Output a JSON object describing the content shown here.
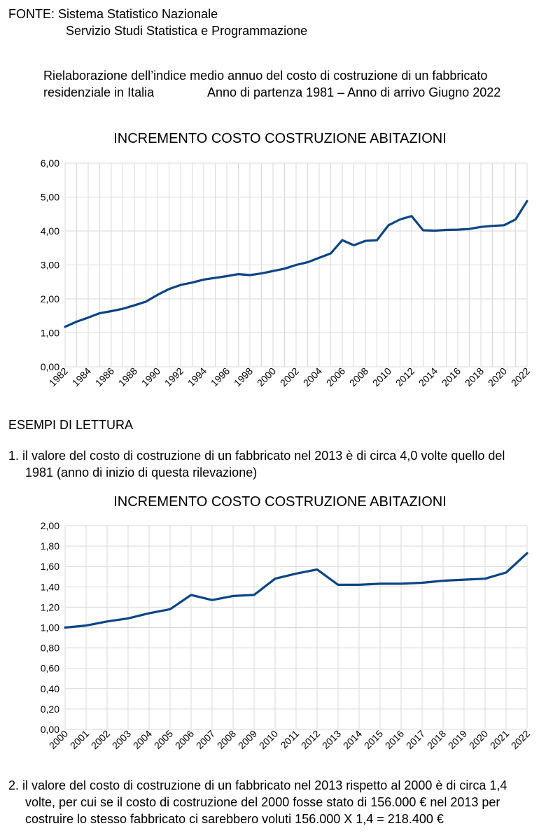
{
  "header": {
    "source_line1": "FONTE: Sistema Statistico Nazionale",
    "source_line2": "Servizio Studi Statistica e Programmazione",
    "desc_line1": "Rielaborazione dell’indice medio annuo del costo di costruzione di un fabbricato",
    "desc_line2a": "residenziale in Italia",
    "desc_line2b": "Anno di partenza 1981 – Anno di arrivo Giugno 2022"
  },
  "section_title": "ESEMPI DI LETTURA",
  "example1": {
    "line1": "1. il valore del costo di costruzione di un fabbricato nel 2013 è di circa 4,0 volte quello del",
    "line2": "1981 (anno di inizio di questa rilevazione)"
  },
  "example2": {
    "line1": "2. il valore del costo di costruzione di un fabbricato nel 2013 rispetto al 2000 è di circa 1,4",
    "line2": "volte, per cui se il costo di costruzione del 2000 fosse stato di 156.000 € nel 2013 per",
    "line3": "costruire lo stesso fabbricato ci sarebbero voluti 156.000 X 1,4 = 218.400 €"
  },
  "colors": {
    "series": "#0b4584",
    "grid": "#d9d9d9"
  },
  "chart_data": [
    {
      "type": "line",
      "title": "INCREMENTO COSTO COSTRUZIONE ABITAZIONI",
      "xlabel": "",
      "ylabel": "",
      "ylim": [
        0,
        6
      ],
      "yticks": [
        "0,00",
        "1,00",
        "2,00",
        "3,00",
        "4,00",
        "5,00",
        "6,00"
      ],
      "xticks": [
        "1982",
        "1984",
        "1986",
        "1988",
        "1990",
        "1992",
        "1994",
        "1996",
        "1998",
        "2000",
        "2002",
        "2004",
        "2006",
        "2008",
        "2010",
        "2012",
        "2014",
        "2016",
        "2018",
        "2020",
        "2022"
      ],
      "grid": true,
      "x": [
        1982,
        1983,
        1984,
        1985,
        1986,
        1987,
        1988,
        1989,
        1990,
        1991,
        1992,
        1993,
        1994,
        1995,
        1996,
        1997,
        1998,
        1999,
        2000,
        2001,
        2002,
        2003,
        2004,
        2005,
        2006,
        2007,
        2008,
        2009,
        2010,
        2011,
        2012,
        2013,
        2014,
        2015,
        2016,
        2017,
        2018,
        2019,
        2020,
        2021,
        2022
      ],
      "values": [
        1.18,
        1.33,
        1.45,
        1.58,
        1.64,
        1.71,
        1.81,
        1.92,
        2.12,
        2.29,
        2.41,
        2.48,
        2.57,
        2.62,
        2.67,
        2.73,
        2.7,
        2.75,
        2.82,
        2.89,
        3.0,
        3.08,
        3.21,
        3.34,
        3.73,
        3.58,
        3.71,
        3.73,
        4.17,
        4.34,
        4.44,
        4.02,
        4.01,
        4.03,
        4.04,
        4.06,
        4.12,
        4.15,
        4.17,
        4.34,
        4.88
      ]
    },
    {
      "type": "line",
      "title": "INCREMENTO COSTO COSTRUZIONE ABITAZIONI",
      "xlabel": "",
      "ylabel": "",
      "ylim": [
        0,
        2
      ],
      "yticks": [
        "0,00",
        "0,20",
        "0,40",
        "0,60",
        "0,80",
        "1,00",
        "1,20",
        "1,40",
        "1,60",
        "1,80",
        "2,00"
      ],
      "xticks": [
        "2000",
        "2001",
        "2002",
        "2003",
        "2004",
        "2005",
        "2006",
        "2007",
        "2008",
        "2009",
        "2010",
        "2011",
        "2012",
        "2013",
        "2014",
        "2015",
        "2016",
        "2017",
        "2018",
        "2019",
        "2020",
        "2021",
        "2022"
      ],
      "grid": true,
      "x": [
        2000,
        2001,
        2002,
        2003,
        2004,
        2005,
        2006,
        2007,
        2008,
        2009,
        2010,
        2011,
        2012,
        2013,
        2014,
        2015,
        2016,
        2017,
        2018,
        2019,
        2020,
        2021,
        2022
      ],
      "values": [
        1.0,
        1.02,
        1.06,
        1.09,
        1.14,
        1.18,
        1.32,
        1.27,
        1.31,
        1.32,
        1.48,
        1.53,
        1.57,
        1.42,
        1.42,
        1.43,
        1.43,
        1.44,
        1.46,
        1.47,
        1.48,
        1.54,
        1.73
      ]
    }
  ]
}
